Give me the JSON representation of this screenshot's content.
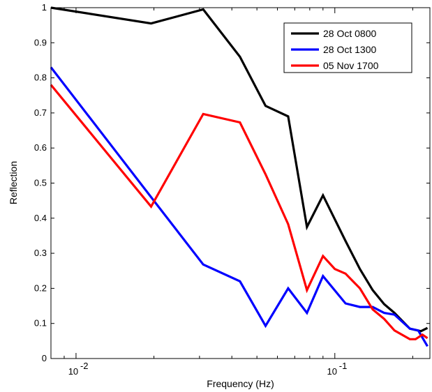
{
  "chart_data": {
    "type": "line",
    "title": "",
    "xlabel": "Frequency (Hz)",
    "ylabel": "Reflection",
    "x_scale": "log",
    "xlim": [
      0.008,
      0.233
    ],
    "ylim": [
      0,
      1
    ],
    "yticks": [
      "0",
      "0.1",
      "0.2",
      "0.3",
      "0.4",
      "0.5",
      "0.6",
      "0.7",
      "0.8",
      "0.9",
      "1"
    ],
    "xticks": [
      {
        "base": "10",
        "exp": "-2"
      },
      {
        "base": "10",
        "exp": "-1"
      }
    ],
    "grid": false,
    "legend_position": "top-right",
    "series": [
      {
        "name": "28 Oct 0800",
        "color": "#000000",
        "x": [
          0.008,
          0.0195,
          0.031,
          0.043,
          0.054,
          0.066,
          0.078,
          0.09,
          0.11,
          0.125,
          0.14,
          0.155,
          0.17,
          0.195,
          0.215,
          0.228
        ],
        "y": [
          1.0,
          0.955,
          0.995,
          0.86,
          0.72,
          0.69,
          0.375,
          0.465,
          0.335,
          0.255,
          0.195,
          0.155,
          0.13,
          0.085,
          0.078,
          0.087
        ]
      },
      {
        "name": "28 Oct 1300",
        "color": "#0000ff",
        "x": [
          0.008,
          0.0195,
          0.031,
          0.043,
          0.054,
          0.066,
          0.078,
          0.09,
          0.11,
          0.125,
          0.14,
          0.155,
          0.17,
          0.195,
          0.21,
          0.228
        ],
        "y": [
          0.83,
          0.46,
          0.268,
          0.22,
          0.093,
          0.2,
          0.13,
          0.235,
          0.157,
          0.147,
          0.147,
          0.13,
          0.125,
          0.085,
          0.08,
          0.035
        ]
      },
      {
        "name": "05 Nov 1700",
        "color": "#ff0000",
        "x": [
          0.008,
          0.0195,
          0.031,
          0.043,
          0.054,
          0.066,
          0.078,
          0.09,
          0.1,
          0.11,
          0.125,
          0.14,
          0.155,
          0.17,
          0.195,
          0.205,
          0.218,
          0.228
        ],
        "y": [
          0.78,
          0.433,
          0.697,
          0.673,
          0.525,
          0.383,
          0.195,
          0.292,
          0.255,
          0.242,
          0.2,
          0.14,
          0.113,
          0.08,
          0.055,
          0.055,
          0.068,
          0.058
        ]
      }
    ]
  }
}
